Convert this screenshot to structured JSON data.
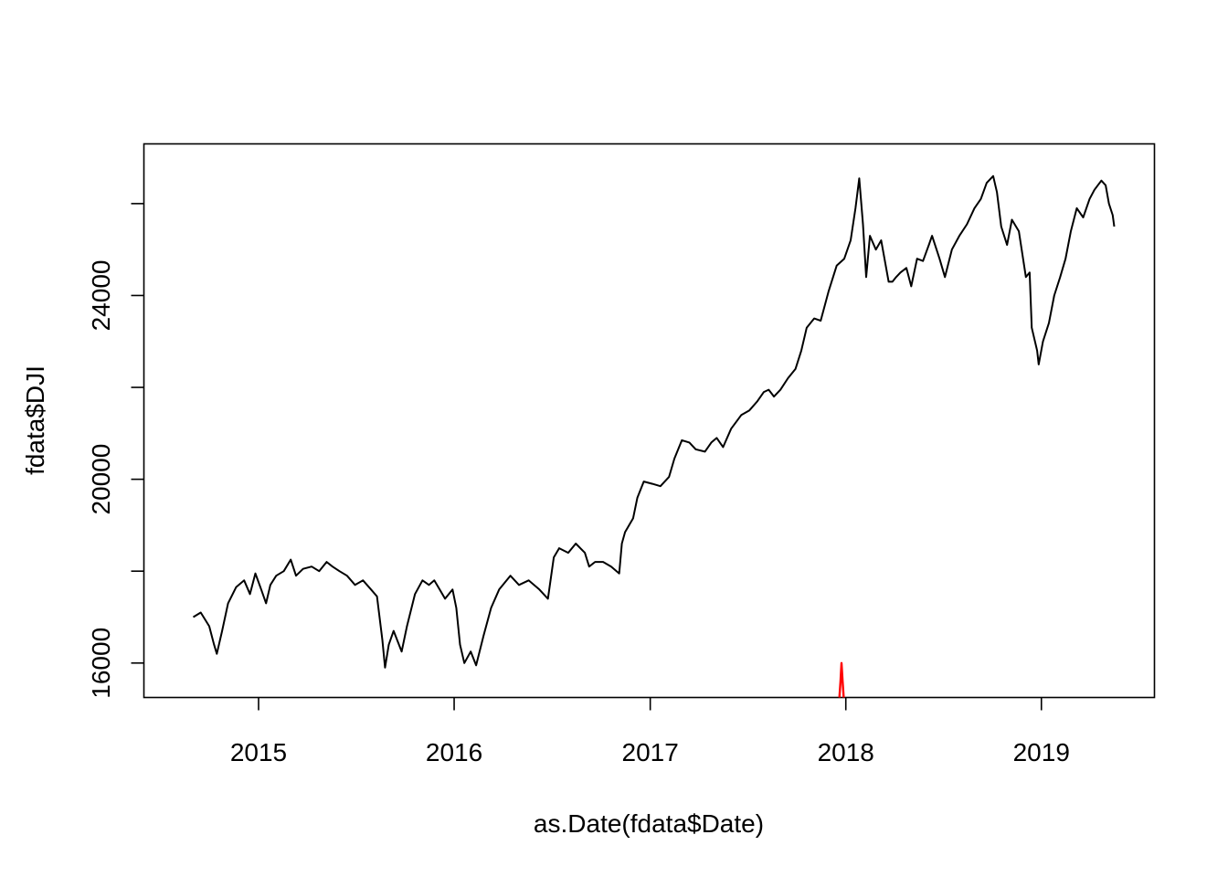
{
  "chart_data": {
    "type": "line",
    "title": "",
    "xlabel": "as.Date(fdata$Date)",
    "ylabel": "fdata$DJI",
    "xlim": [
      "2014-06-01",
      "2019-07-31"
    ],
    "ylim": [
      15250,
      27300
    ],
    "x_ticks": [
      "2015-01-01",
      "2016-01-01",
      "2017-01-01",
      "2018-01-01",
      "2019-01-01"
    ],
    "x_tick_labels": [
      "2015",
      "2016",
      "2017",
      "2018",
      "2019"
    ],
    "y_ticks": [
      16000,
      18000,
      20000,
      22000,
      24000,
      26000
    ],
    "y_tick_labels": [
      "16000",
      "",
      "20000",
      "",
      "24000",
      ""
    ],
    "grid": false,
    "series": [
      {
        "color": "#000000",
        "x": [
          "2014-09-01",
          "2014-09-15",
          "2014-10-01",
          "2014-10-10",
          "2014-10-15",
          "2014-10-25",
          "2014-11-05",
          "2014-11-20",
          "2014-12-05",
          "2014-12-16",
          "2014-12-26",
          "2015-01-06",
          "2015-01-15",
          "2015-01-23",
          "2015-02-03",
          "2015-02-17",
          "2015-03-02",
          "2015-03-12",
          "2015-03-25",
          "2015-04-10",
          "2015-04-24",
          "2015-05-08",
          "2015-05-19",
          "2015-06-01",
          "2015-06-15",
          "2015-06-30",
          "2015-07-15",
          "2015-07-30",
          "2015-08-10",
          "2015-08-20",
          "2015-08-25",
          "2015-09-01",
          "2015-09-10",
          "2015-09-25",
          "2015-10-05",
          "2015-10-20",
          "2015-11-03",
          "2015-11-15",
          "2015-11-25",
          "2015-12-05",
          "2015-12-15",
          "2015-12-29",
          "2016-01-05",
          "2016-01-12",
          "2016-01-20",
          "2016-02-01",
          "2016-02-11",
          "2016-02-25",
          "2016-03-10",
          "2016-03-25",
          "2016-04-15",
          "2016-05-01",
          "2016-05-19",
          "2016-06-08",
          "2016-06-24",
          "2016-07-05",
          "2016-07-15",
          "2016-08-01",
          "2016-08-15",
          "2016-09-01",
          "2016-09-09",
          "2016-09-20",
          "2016-10-05",
          "2016-10-20",
          "2016-11-04",
          "2016-11-09",
          "2016-11-15",
          "2016-11-30",
          "2016-12-08",
          "2016-12-20",
          "2017-01-05",
          "2017-01-20",
          "2017-02-05",
          "2017-02-15",
          "2017-03-01",
          "2017-03-15",
          "2017-03-27",
          "2017-04-13",
          "2017-04-25",
          "2017-05-05",
          "2017-05-17",
          "2017-06-01",
          "2017-06-20",
          "2017-07-05",
          "2017-07-20",
          "2017-08-01",
          "2017-08-10",
          "2017-08-20",
          "2017-09-01",
          "2017-09-15",
          "2017-09-29",
          "2017-10-10",
          "2017-10-20",
          "2017-11-03",
          "2017-11-15",
          "2017-11-30",
          "2017-12-15",
          "2017-12-29",
          "2018-01-10",
          "2018-01-19",
          "2018-01-26",
          "2018-02-02",
          "2018-02-08",
          "2018-02-15",
          "2018-02-26",
          "2018-03-08",
          "2018-03-22",
          "2018-03-29",
          "2018-04-05",
          "2018-04-13",
          "2018-04-24",
          "2018-05-03",
          "2018-05-14",
          "2018-05-25",
          "2018-06-05",
          "2018-06-11",
          "2018-06-25",
          "2018-07-05",
          "2018-07-18",
          "2018-08-01",
          "2018-08-15",
          "2018-08-29",
          "2018-09-10",
          "2018-09-21",
          "2018-10-03",
          "2018-10-10",
          "2018-10-18",
          "2018-10-29",
          "2018-11-07",
          "2018-11-20",
          "2018-12-03",
          "2018-12-10",
          "2018-12-14",
          "2018-12-24",
          "2018-12-27",
          "2019-01-04",
          "2019-01-15",
          "2019-01-25",
          "2019-02-05",
          "2019-02-15",
          "2019-02-25",
          "2019-03-08",
          "2019-03-20",
          "2019-04-01",
          "2019-04-10",
          "2019-04-23",
          "2019-05-01",
          "2019-05-07",
          "2019-05-14",
          "2019-05-17"
        ],
        "y": [
          17000,
          17100,
          16800,
          16400,
          16200,
          16700,
          17300,
          17650,
          17800,
          17500,
          17950,
          17600,
          17300,
          17700,
          17900,
          18000,
          18250,
          17900,
          18050,
          18100,
          18000,
          18200,
          18100,
          18000,
          17900,
          17700,
          17800,
          17600,
          17450,
          16500,
          15900,
          16400,
          16700,
          16250,
          16800,
          17500,
          17800,
          17700,
          17800,
          17600,
          17400,
          17600,
          17200,
          16400,
          16000,
          16250,
          15950,
          16600,
          17200,
          17600,
          17900,
          17700,
          17800,
          17600,
          17400,
          18300,
          18500,
          18400,
          18600,
          18400,
          18100,
          18200,
          18200,
          18100,
          17950,
          18600,
          18850,
          19150,
          19600,
          19950,
          19900,
          19850,
          20050,
          20450,
          20850,
          20800,
          20650,
          20600,
          20800,
          20900,
          20700,
          21100,
          21400,
          21500,
          21700,
          21900,
          21950,
          21800,
          21950,
          22200,
          22400,
          22800,
          23300,
          23500,
          23450,
          24100,
          24650,
          24800,
          25200,
          25900,
          26550,
          25550,
          24400,
          25300,
          25000,
          25200,
          24300,
          24300,
          24400,
          24500,
          24600,
          24200,
          24800,
          24750,
          25100,
          25300,
          24800,
          24400,
          25000,
          25300,
          25550,
          25900,
          26100,
          26450,
          26600,
          26250,
          25500,
          25100,
          25650,
          25400,
          24400,
          24500,
          23300,
          22800,
          22500,
          23000,
          23400,
          24000,
          24400,
          24800,
          25400,
          25900,
          25700,
          26100,
          26300,
          26500,
          26400,
          26000,
          25750,
          25500
        ]
      },
      {
        "color": "#ff0000",
        "x": [
          "2017-12-20",
          "2017-12-22",
          "2017-12-24",
          "2017-12-26",
          "2017-12-28"
        ],
        "y": [
          15250,
          15600,
          16000,
          15600,
          15250
        ]
      }
    ]
  }
}
